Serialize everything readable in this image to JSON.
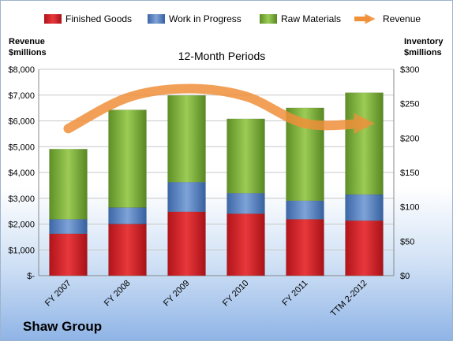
{
  "chart_data": {
    "type": "bar",
    "stacked": true,
    "title": "12-Month Periods",
    "categories": [
      "FY 2007",
      "FY 2008",
      "FY 2009",
      "FY 2010",
      "FY 2011",
      "TTM 2-2012"
    ],
    "series": [
      {
        "name": "Finished Goods",
        "axis": "right",
        "color": "#d9252a",
        "values": [
          61,
          75,
          93,
          90,
          82,
          80
        ]
      },
      {
        "name": "Work in Progress",
        "axis": "right",
        "color": "#5a86c4",
        "values": [
          21,
          24,
          43,
          30,
          27,
          38
        ]
      },
      {
        "name": "Raw Materials",
        "axis": "right",
        "color": "#7fb03a",
        "values": [
          102,
          142,
          126,
          108,
          135,
          148
        ]
      },
      {
        "name": "Revenue",
        "axis": "left",
        "type": "line",
        "color": "#f0903a",
        "values": [
          5700,
          6900,
          7250,
          6950,
          5900,
          5900
        ]
      }
    ],
    "left_axis": {
      "label_line1": "Revenue",
      "label_line2": "$millions",
      "range": [
        0,
        8000
      ],
      "ticks": [
        "$-",
        "$1,000",
        "$2,000",
        "$3,000",
        "$4,000",
        "$5,000",
        "$6,000",
        "$7,000",
        "$8,000"
      ]
    },
    "right_axis": {
      "label_line1": "Inventory",
      "label_line2": "$millions",
      "range": [
        0,
        300
      ],
      "ticks": [
        "$0",
        "$50",
        "$100",
        "$150",
        "$200",
        "$250",
        "$300"
      ]
    },
    "grid": true,
    "legend_position": "top"
  },
  "company": "Shaw Group"
}
